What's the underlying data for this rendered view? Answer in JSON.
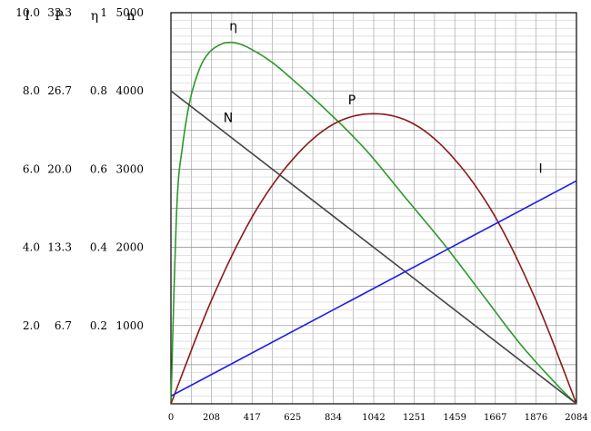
{
  "chart_data": {
    "type": "line",
    "title": "",
    "left_axes": [
      {
        "header": "I",
        "labels": [
          "10.0",
          "8.0",
          "6.0",
          "4.0",
          "2.0"
        ]
      },
      {
        "header": "P",
        "labels": [
          "33.3",
          "26.7",
          "20.0",
          "13.3",
          "6.7"
        ]
      },
      {
        "header": "η",
        "labels": [
          "1",
          "0.8",
          "0.6",
          "0.4",
          "0.2"
        ]
      },
      {
        "header": "n",
        "labels": [
          "5000",
          "4000",
          "3000",
          "2000",
          "1000"
        ]
      }
    ],
    "n_axis_values": [
      5000,
      4000,
      3000,
      2000,
      1000
    ],
    "x_ticks": [
      "0",
      "208",
      "417",
      "625",
      "834",
      "1042",
      "1251",
      "1459",
      "1667",
      "1876",
      "2084"
    ],
    "xlim": [
      0,
      2084
    ],
    "ylim_n": [
      0,
      5000
    ],
    "ylim_I": [
      0,
      10
    ],
    "ylim_P": [
      0,
      33.3
    ],
    "ylim_eta": [
      0,
      1
    ],
    "grid": true,
    "series": [
      {
        "name": "η",
        "color": "#2a9a2a",
        "axis": "eta",
        "x": [
          0,
          30,
          60,
          100,
          150,
          200,
          260,
          300,
          340,
          400,
          500,
          600,
          800,
          1000,
          1200,
          1400,
          1600,
          1800,
          2000,
          2084
        ],
        "y": [
          0,
          0.5,
          0.66,
          0.78,
          0.86,
          0.9,
          0.92,
          0.924,
          0.922,
          0.91,
          0.88,
          0.84,
          0.75,
          0.65,
          0.53,
          0.41,
          0.28,
          0.15,
          0.04,
          0
        ]
      },
      {
        "name": "P",
        "color": "#8b1a1a",
        "axis": "P",
        "x": [
          0,
          208,
          417,
          625,
          834,
          1042,
          1251,
          1459,
          1667,
          1876,
          2084
        ],
        "y": [
          0,
          8.8,
          15.9,
          20.8,
          23.8,
          24.7,
          23.8,
          20.8,
          15.9,
          8.8,
          0
        ]
      },
      {
        "name": "N",
        "color": "#444444",
        "axis": "n",
        "x": [
          0,
          2084
        ],
        "y": [
          4000,
          0
        ]
      },
      {
        "name": "I",
        "color": "#1a1aee",
        "axis": "I",
        "x": [
          0,
          2084
        ],
        "y": [
          0.2,
          5.7
        ]
      }
    ],
    "curve_labels": [
      {
        "text": "η",
        "series": "η",
        "x": 300,
        "y": 0.955
      },
      {
        "text": "N",
        "series": "N",
        "x": 270,
        "y": 3600
      },
      {
        "text": "P",
        "series": "P",
        "x": 910,
        "y": 25.5
      },
      {
        "text": "I",
        "series": "I",
        "x": 1890,
        "y": 5.9
      }
    ]
  }
}
